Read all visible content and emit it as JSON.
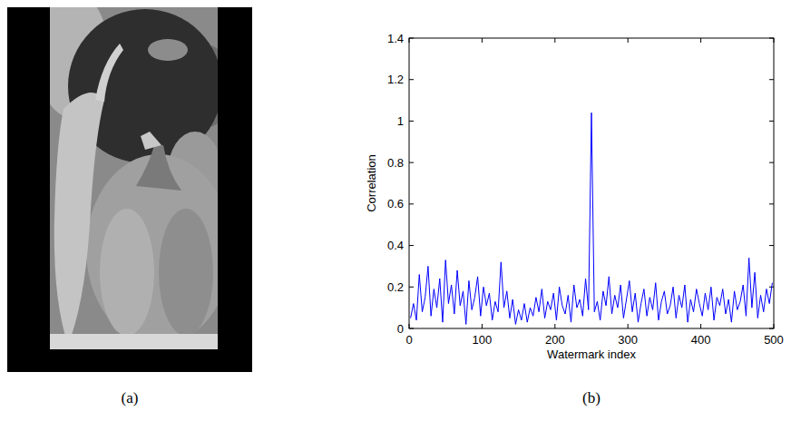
{
  "image_panel": {
    "caption": "(a)"
  },
  "chart_data": {
    "type": "line",
    "caption": "(b)",
    "x_label": "Watermark index",
    "y_label": "Correlation",
    "x": [
      2,
      6,
      10,
      14,
      18,
      22,
      26,
      30,
      34,
      38,
      42,
      46,
      50,
      54,
      58,
      62,
      66,
      70,
      74,
      78,
      82,
      86,
      90,
      94,
      98,
      102,
      106,
      110,
      114,
      118,
      122,
      126,
      130,
      134,
      138,
      142,
      146,
      150,
      154,
      158,
      162,
      166,
      170,
      174,
      178,
      182,
      186,
      190,
      194,
      198,
      202,
      206,
      210,
      214,
      218,
      222,
      226,
      230,
      234,
      238,
      242,
      246,
      250,
      254,
      258,
      262,
      266,
      270,
      274,
      278,
      282,
      286,
      290,
      294,
      298,
      302,
      306,
      310,
      314,
      318,
      322,
      326,
      330,
      334,
      338,
      342,
      346,
      350,
      354,
      358,
      362,
      366,
      370,
      374,
      378,
      382,
      386,
      390,
      394,
      398,
      402,
      406,
      410,
      414,
      418,
      422,
      426,
      430,
      434,
      438,
      442,
      446,
      450,
      454,
      458,
      462,
      466,
      470,
      474,
      478,
      482,
      486,
      490,
      494,
      498
    ],
    "values": [
      0.05,
      0.12,
      0.04,
      0.26,
      0.08,
      0.15,
      0.3,
      0.06,
      0.19,
      0.1,
      0.24,
      0.03,
      0.33,
      0.12,
      0.21,
      0.07,
      0.28,
      0.11,
      0.18,
      0.02,
      0.23,
      0.09,
      0.15,
      0.25,
      0.06,
      0.2,
      0.11,
      0.17,
      0.04,
      0.13,
      0.08,
      0.32,
      0.1,
      0.18,
      0.05,
      0.14,
      0.02,
      0.09,
      0.04,
      0.12,
      0.03,
      0.1,
      0.06,
      0.15,
      0.08,
      0.19,
      0.05,
      0.13,
      0.09,
      0.17,
      0.04,
      0.2,
      0.11,
      0.07,
      0.16,
      0.03,
      0.21,
      0.1,
      0.14,
      0.06,
      0.24,
      0.09,
      1.04,
      0.08,
      0.13,
      0.04,
      0.18,
      0.11,
      0.25,
      0.07,
      0.16,
      0.1,
      0.21,
      0.05,
      0.14,
      0.23,
      0.08,
      0.17,
      0.03,
      0.12,
      0.19,
      0.06,
      0.15,
      0.09,
      0.22,
      0.04,
      0.13,
      0.18,
      0.07,
      0.11,
      0.2,
      0.05,
      0.16,
      0.1,
      0.21,
      0.03,
      0.14,
      0.08,
      0.19,
      0.12,
      0.06,
      0.17,
      0.09,
      0.2,
      0.04,
      0.15,
      0.11,
      0.19,
      0.07,
      0.14,
      0.03,
      0.18,
      0.09,
      0.13,
      0.21,
      0.06,
      0.34,
      0.1,
      0.27,
      0.05,
      0.16,
      0.08,
      0.19,
      0.12,
      0.22
    ],
    "color": "#0000ff",
    "xlim": [
      0,
      500
    ],
    "xticks": [
      0,
      100,
      200,
      300,
      400,
      500
    ],
    "ylim": [
      0,
      1.4
    ],
    "yticks": [
      0,
      0.2,
      0.4,
      0.6,
      0.8,
      1,
      1.2,
      1.4
    ],
    "grid": false
  }
}
